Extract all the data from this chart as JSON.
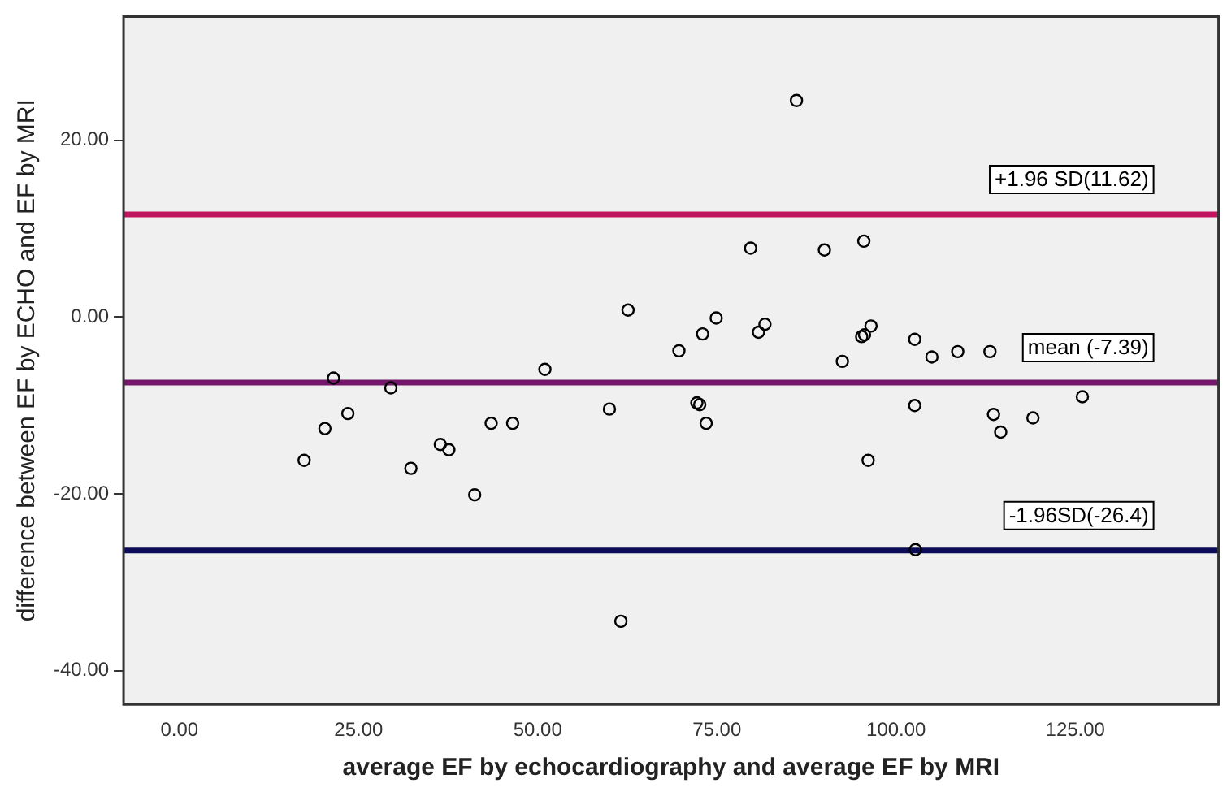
{
  "chart_data": {
    "type": "scatter",
    "xlabel": "average EF by echocardiography and average EF by MRI",
    "ylabel": "difference between EF by ECHO and EF by MRI",
    "x": [
      17.4,
      20.3,
      21.5,
      23.5,
      29.5,
      32.3,
      36.4,
      37.6,
      41.2,
      43.5,
      46.5,
      51.0,
      60.0,
      62.6,
      61.6,
      69.7,
      72.2,
      72.6,
      73.0,
      73.5,
      74.9,
      79.7,
      80.8,
      81.7,
      86.1,
      90.0,
      92.5,
      95.5,
      95.2,
      95.6,
      96.5,
      96.1,
      102.6,
      102.6,
      102.7,
      105.0,
      108.6,
      113.1,
      113.6,
      114.6,
      119.1,
      126.0
    ],
    "series": [
      {
        "color": "#000000",
        "values": [
          -16.2,
          -12.6,
          -6.9,
          -10.9,
          -8.0,
          -17.1,
          -14.4,
          -15.0,
          -20.1,
          -12.0,
          -12.0,
          -5.9,
          -10.4,
          0.8,
          -34.4,
          -3.8,
          -9.7,
          -9.9,
          -1.9,
          -12.0,
          -0.1,
          7.8,
          -1.7,
          -0.8,
          24.5,
          7.6,
          -5.0,
          8.6,
          -2.2,
          -2.0,
          -1.0,
          -16.2,
          -2.5,
          -10.0,
          -26.3,
          -4.5,
          -3.9,
          -3.9,
          -11.0,
          -13.0,
          -11.4,
          -9.0
        ]
      }
    ],
    "marker": "circle",
    "grid": false,
    "legend": false,
    "xlim": [
      -7.8,
      145
    ],
    "xticks": [
      {
        "value": 0,
        "label": "0.00"
      },
      {
        "value": 25,
        "label": "25.00"
      },
      {
        "value": 50,
        "label": "50.00"
      },
      {
        "value": 75,
        "label": "75.00"
      },
      {
        "value": 100,
        "label": "100.00"
      },
      {
        "value": 125,
        "label": "125.00"
      }
    ],
    "ylim": [
      -43.8,
      34
    ],
    "yticks": [
      {
        "value": -40,
        "label": "-40.00"
      },
      {
        "value": -20,
        "label": "-20.00"
      },
      {
        "value": 0,
        "label": "0.00"
      },
      {
        "value": 20,
        "label": "20.00"
      }
    ],
    "ref_lines": [
      {
        "axis": "y",
        "value": 11.62,
        "label": "+1.96 SD(11.62)",
        "color": "#c0145e"
      },
      {
        "axis": "y",
        "value": -7.39,
        "label": "mean (-7.39)",
        "color": "#73176b"
      },
      {
        "axis": "y",
        "value": -26.4,
        "label": "-1.96SD(-26.4)",
        "color": "#0c0c58"
      }
    ]
  }
}
